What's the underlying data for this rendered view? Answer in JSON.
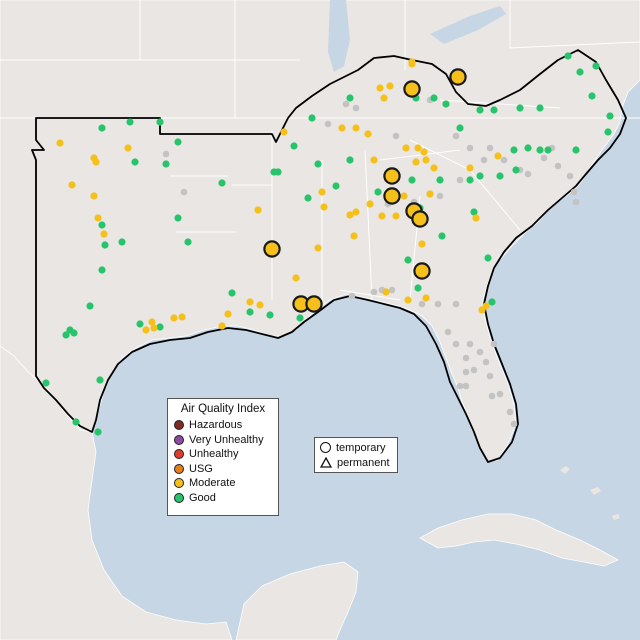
{
  "legend": {
    "title": "Air Quality Index",
    "categories": [
      {
        "label": "Hazardous",
        "color": "#7e2b23"
      },
      {
        "label": "Very Unhealthy",
        "color": "#8c4aa0"
      },
      {
        "label": "Unhealthy",
        "color": "#e03b2b"
      },
      {
        "label": "USG",
        "color": "#e67e1a"
      },
      {
        "label": "Moderate",
        "color": "#f5c01a"
      },
      {
        "label": "Good",
        "color": "#27c46b"
      }
    ]
  },
  "monitor_types": {
    "temporary": "temporary",
    "permanent": "permanent"
  },
  "colors": {
    "ocean": "#c6d6e5",
    "land": "#e9e6e3",
    "no_data": "#c3c3c3",
    "moderate": "#f5c01a",
    "good": "#27c46b"
  }
}
